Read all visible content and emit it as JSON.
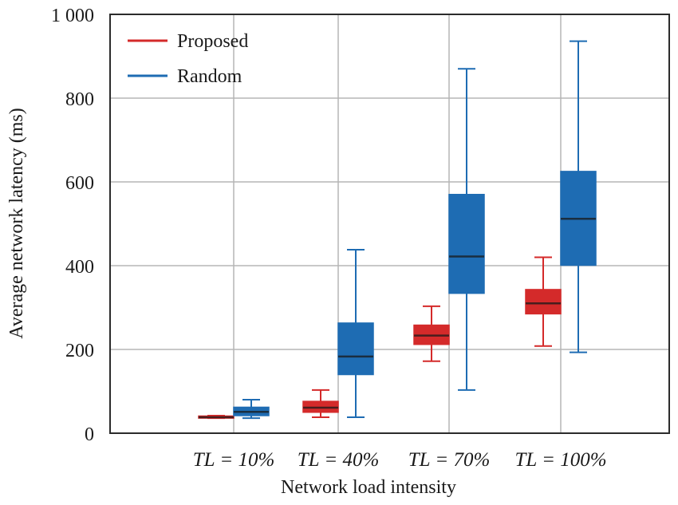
{
  "chart_data": {
    "type": "boxplot",
    "title": "",
    "xlabel": "Network load intensity",
    "ylabel": "Average network latency (ms)",
    "ylim": [
      0,
      1000
    ],
    "yticks": [
      0,
      200,
      400,
      600,
      800,
      1000
    ],
    "ytick_labels": [
      "0",
      "200",
      "400",
      "600",
      "800",
      "1 000"
    ],
    "grid": true,
    "legend_position": "top-left",
    "categories": [
      "TL = 10%",
      "TL = 40%",
      "TL = 70%",
      "TL = 100%"
    ],
    "series": [
      {
        "name": "Proposed",
        "color": "#d42a2a",
        "boxes": [
          {
            "min": 36,
            "q1": 36,
            "median": 38,
            "q3": 41,
            "max": 42
          },
          {
            "min": 38,
            "q1": 50,
            "median": 61,
            "q3": 76,
            "max": 103
          },
          {
            "min": 172,
            "q1": 212,
            "median": 233,
            "q3": 258,
            "max": 303
          },
          {
            "min": 208,
            "q1": 285,
            "median": 310,
            "q3": 343,
            "max": 420
          }
        ]
      },
      {
        "name": "Random",
        "color": "#1e6cb3",
        "boxes": [
          {
            "min": 36,
            "q1": 42,
            "median": 51,
            "q3": 62,
            "max": 80
          },
          {
            "min": 38,
            "q1": 140,
            "median": 183,
            "q3": 263,
            "max": 438
          },
          {
            "min": 103,
            "q1": 334,
            "median": 422,
            "q3": 570,
            "max": 870
          },
          {
            "min": 193,
            "q1": 401,
            "median": 512,
            "q3": 625,
            "max": 936
          }
        ]
      }
    ]
  }
}
